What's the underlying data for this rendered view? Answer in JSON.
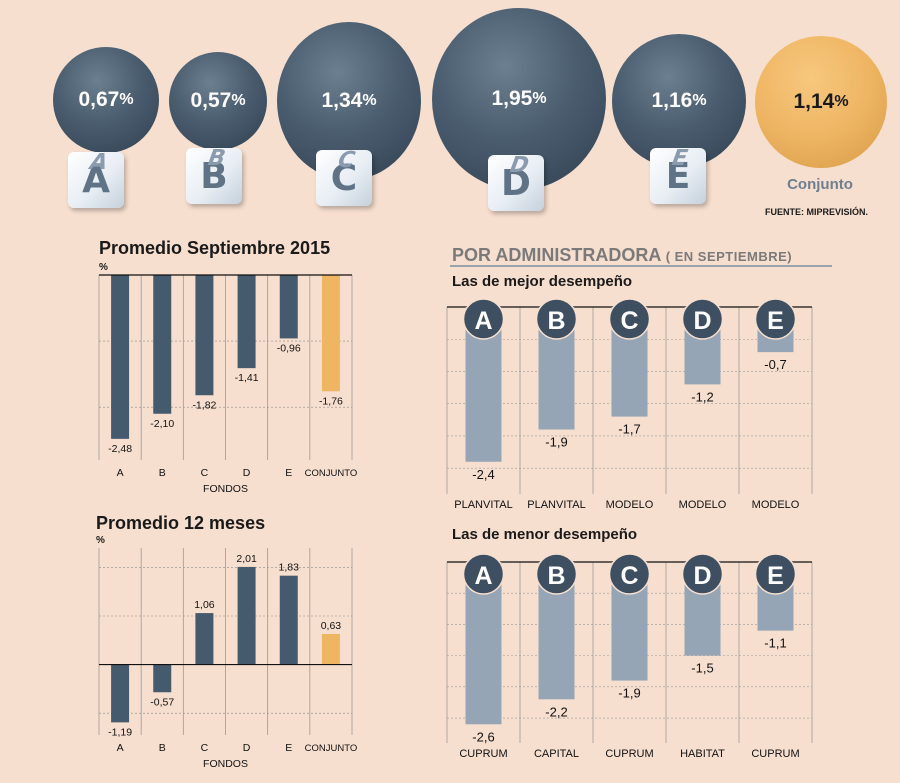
{
  "bubbles": [
    {
      "value": "0,67",
      "pct": "%",
      "letter": "A",
      "size": 0.67
    },
    {
      "value": "0,57",
      "pct": "%",
      "letter": "B",
      "size": 0.57
    },
    {
      "value": "1,34",
      "pct": "%",
      "letter": "C",
      "size": 1.34
    },
    {
      "value": "1,95",
      "pct": "%",
      "letter": "D",
      "size": 1.95
    },
    {
      "value": "1,16",
      "pct": "%",
      "letter": "E",
      "size": 1.16
    },
    {
      "value": "1,14",
      "pct": "%",
      "letter": "",
      "size": 1.14
    }
  ],
  "conjunto_label": "Conjunto",
  "source": "FUENTE: MIPREVISIÓN.",
  "colors": {
    "background": "#f7dfcf",
    "bar_dark": "#455a6d",
    "bar_gold": "#eeb563",
    "bar_light": "#95a5b6",
    "circle_dark": "#3d4f60"
  },
  "admin": {
    "title": "POR ADMINISTRADORA",
    "title_note": "( EN SEPTIEMBRE)",
    "best_title": "Las de mejor desempeño",
    "worst_title": "Las de menor desempeño"
  },
  "chart_data": [
    {
      "type": "bar",
      "title": "Promedio Septiembre 2015",
      "ylabel": "%",
      "xlabel": "FONDOS",
      "categories": [
        "A",
        "B",
        "C",
        "D",
        "E",
        "CONJUNTO"
      ],
      "values": [
        -2.48,
        -2.1,
        -1.82,
        -1.41,
        -0.96,
        -1.76
      ],
      "labels": [
        "-2,48",
        "-2,10",
        "-1,82",
        "-1,41",
        "-0,96",
        "-1,76"
      ],
      "ylim": [
        -2.8,
        0
      ]
    },
    {
      "type": "bar",
      "title": "Promedio 12 meses",
      "ylabel": "%",
      "xlabel": "FONDOS",
      "categories": [
        "A",
        "B",
        "C",
        "D",
        "E",
        "CONJUNTO"
      ],
      "values": [
        -1.19,
        -0.57,
        1.06,
        2.01,
        1.83,
        0.63
      ],
      "labels": [
        "-1,19",
        "-0,57",
        "1,06",
        "2,01",
        "1,83",
        "0,63"
      ],
      "ylim": [
        -1.45,
        2.4
      ]
    },
    {
      "type": "bar",
      "title": "Las de mejor desempeño",
      "categories": [
        "A",
        "B",
        "C",
        "D",
        "E"
      ],
      "names": [
        "PLANVITAL",
        "PLANVITAL",
        "MODELO",
        "MODELO",
        "MODELO"
      ],
      "values": [
        -2.4,
        -1.9,
        -1.7,
        -1.2,
        -0.7
      ],
      "labels": [
        "-2,4",
        "-1,9",
        "-1,7",
        "-1,2",
        "-0,7"
      ],
      "ylim": [
        -2.9,
        0
      ]
    },
    {
      "type": "bar",
      "title": "Las de menor desempeño",
      "categories": [
        "A",
        "B",
        "C",
        "D",
        "E"
      ],
      "names": [
        "CUPRUM",
        "CAPITAL",
        "CUPRUM",
        "HABITAT",
        "CUPRUM"
      ],
      "values": [
        -2.6,
        -2.2,
        -1.9,
        -1.5,
        -1.1
      ],
      "labels": [
        "-2,6",
        "-2,2",
        "-1,9",
        "-1,5",
        "-1,1"
      ],
      "ylim": [
        -2.9,
        0
      ]
    }
  ]
}
